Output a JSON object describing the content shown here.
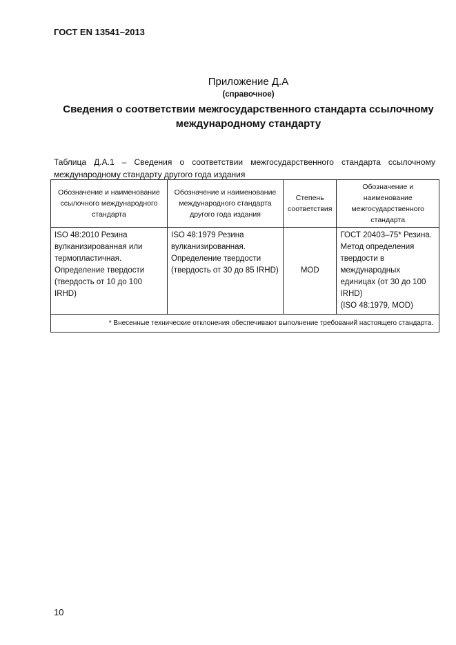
{
  "header": {
    "standard": "ГОСТ EN 13541–2013"
  },
  "appendix": {
    "title": "Приложение Д.А",
    "type": "(справочное)",
    "heading": "Сведения о соответствии межгосударственного стандарта ссылочному международному стандарту"
  },
  "table": {
    "caption": "Таблица Д.А.1 – Сведения о соответствии межгосударственного стандарта ссылочному международному стандарту другого года издания",
    "columns": [
      "Обозначение и наименование ссылочного международного стандарта",
      "Обозначение и наименование международного стандарта другого года издания",
      "Степень соответствия",
      "Обозначение и наименование межгосударственного стандарта"
    ],
    "rows": [
      {
        "reference": "ISO 48:2010 Резина вулканизированная или\nтермопластичная.\nОпределение твердости (твердость от 10 до 100 IRHD)",
        "other_year": "ISO 48:1979 Резина вулканизированная. Определение твердости (твердость от 30 до 85 IRHD)",
        "degree": "MOD",
        "interstate": "ГОСТ 20403–75* Резина. Метод определения твердости в международных единицах (от 30 до 100 IRHD)\n(ISO 48:1979, MOD)"
      }
    ],
    "footnote": "* Внесенные технические отклонения обеспечивают выполнение требований настоящего стандарта."
  },
  "page_number": "10"
}
